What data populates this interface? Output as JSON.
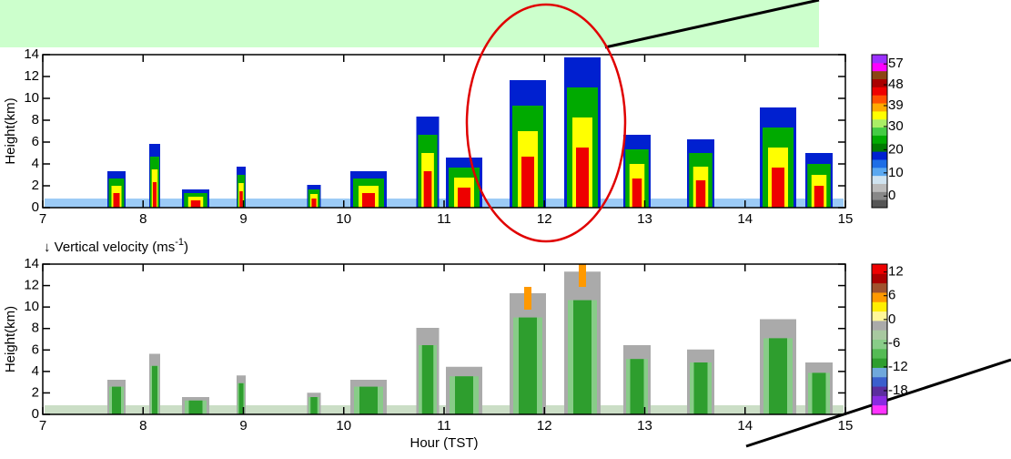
{
  "chart_data": [
    {
      "type": "heatmap",
      "ylabel": "Height(km)",
      "xlim": [
        7,
        15
      ],
      "xticks": [
        7,
        8,
        9,
        10,
        11,
        12,
        13,
        14,
        15
      ],
      "ylim": [
        0,
        14
      ],
      "yticks": [
        0,
        2,
        4,
        6,
        8,
        10,
        12,
        14
      ],
      "colorbar": {
        "clim": [
          -5,
          61
        ],
        "ticks": [
          0,
          10,
          20,
          30,
          39,
          48,
          57
        ],
        "colors": [
          "#555555",
          "#888888",
          "#bbbbbb",
          "#cfe3f0",
          "#5aa8f0",
          "#1e6ee6",
          "#0020d0",
          "#007a00",
          "#00aa00",
          "#44cc44",
          "#aaee66",
          "#ffff00",
          "#ffaa00",
          "#ff5000",
          "#ee0000",
          "#aa0000",
          "#8b4513",
          "#ff00ff",
          "#9b30ff"
        ]
      }
    },
    {
      "type": "heatmap",
      "title": {
        "text": "↓ Vertical velocity (ms",
        "superscript": "-1",
        "suffix": ")"
      },
      "ylabel": "Height(km)",
      "xlabel": "Hour (TST)",
      "xlim": [
        7,
        15
      ],
      "xticks": [
        7,
        8,
        9,
        10,
        11,
        12,
        13,
        14,
        15
      ],
      "ylim": [
        0,
        14
      ],
      "yticks": [
        0,
        2,
        4,
        6,
        8,
        10,
        12,
        14
      ],
      "colorbar": {
        "clim": [
          -24,
          14
        ],
        "ticks": [
          12,
          6,
          0,
          -6,
          -12,
          -18
        ],
        "colors": [
          "#ff33ff",
          "#8a2be2",
          "#5b2d9e",
          "#3a5fcd",
          "#6fa8dc",
          "#2e9e2e",
          "#55bb55",
          "#88cc88",
          "#a8c8a0",
          "#aaaaaa",
          "#fff799",
          "#ffee00",
          "#ff9900",
          "#a0522d",
          "#aa0000",
          "#ee0000"
        ]
      }
    }
  ]
}
